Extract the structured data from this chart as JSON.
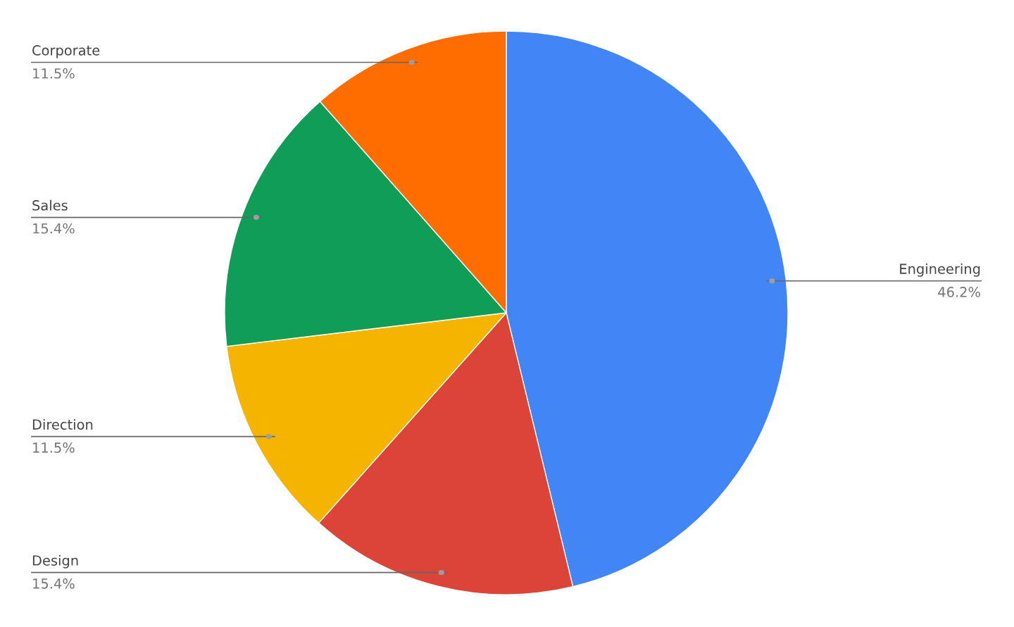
{
  "chart_data": {
    "type": "pie",
    "categories": [
      "Engineering",
      "Design",
      "Direction",
      "Sales",
      "Corporate"
    ],
    "values": [
      46.2,
      15.4,
      11.5,
      15.4,
      11.5
    ],
    "colors": [
      "#4285f4",
      "#db4437",
      "#f4b400",
      "#0f9d58",
      "#ff6d00"
    ],
    "value_labels": [
      "46.2%",
      "15.4%",
      "11.5%",
      "15.4%",
      "11.5%"
    ],
    "legend": false
  }
}
